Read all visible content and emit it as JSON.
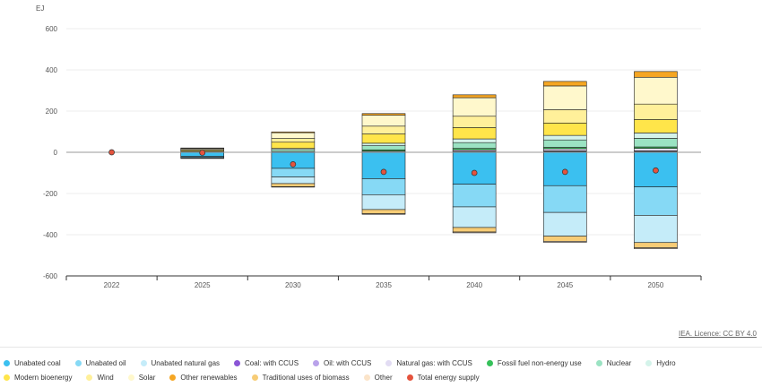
{
  "credit": "IEA. Licence: CC BY 4.0",
  "chart_data": {
    "type": "bar",
    "stacked": true,
    "ylabel": "EJ",
    "ylim": [
      -600,
      600
    ],
    "yticks": [
      600,
      400,
      200,
      0,
      -200,
      -400,
      -600
    ],
    "categories": [
      "2022",
      "2025",
      "2030",
      "2035",
      "2040",
      "2045",
      "2050"
    ],
    "series": [
      {
        "name": "Unabated coal",
        "color": "#3bc0f0",
        "values": [
          0,
          -20,
          -78,
          -128,
          -155,
          -162,
          -168
        ]
      },
      {
        "name": "Unabated oil",
        "color": "#86d9f5",
        "values": [
          0,
          -5,
          -42,
          -78,
          -110,
          -130,
          -138
        ]
      },
      {
        "name": "Unabated natural gas",
        "color": "#c5ecf9",
        "values": [
          0,
          -3,
          -32,
          -72,
          -100,
          -115,
          -132
        ]
      },
      {
        "name": "Coal: with CCUS",
        "color": "#8a55d6",
        "values": [
          0,
          0,
          0,
          1,
          3,
          4,
          4
        ]
      },
      {
        "name": "Oil: with CCUS",
        "color": "#b9a2ea",
        "values": [
          0,
          0,
          0,
          1,
          2,
          3,
          3
        ]
      },
      {
        "name": "Natural gas: with CCUS",
        "color": "#e2dcf3",
        "values": [
          0,
          0,
          1,
          4,
          7,
          10,
          12
        ]
      },
      {
        "name": "Fossil fuel non-energy use",
        "color": "#36c15a",
        "values": [
          0,
          0,
          2,
          6,
          7,
          7,
          7
        ]
      },
      {
        "name": "Nuclear",
        "color": "#9be3c3",
        "values": [
          0,
          3,
          10,
          20,
          28,
          36,
          42
        ]
      },
      {
        "name": "Hydro",
        "color": "#d4f3ea",
        "values": [
          0,
          2,
          6,
          12,
          18,
          22,
          26
        ]
      },
      {
        "name": "Modern bioenergy",
        "color": "#ffe54a",
        "values": [
          0,
          5,
          30,
          45,
          55,
          60,
          65
        ]
      },
      {
        "name": "Wind",
        "color": "#fff09a",
        "values": [
          0,
          4,
          18,
          38,
          55,
          65,
          75
        ]
      },
      {
        "name": "Solar",
        "color": "#fff8cc",
        "values": [
          0,
          6,
          28,
          53,
          90,
          115,
          130
        ]
      },
      {
        "name": "Other renewables",
        "color": "#f5a623",
        "values": [
          0,
          1,
          4,
          8,
          14,
          22,
          28
        ]
      },
      {
        "name": "Traditional uses of biomass",
        "color": "#f7cc76",
        "values": [
          0,
          0,
          -15,
          -20,
          -22,
          -25,
          -25
        ]
      },
      {
        "name": "Other",
        "color": "#fbe4c9",
        "values": [
          0,
          -2,
          -2,
          -3,
          -4,
          -5,
          -5
        ]
      }
    ],
    "total_energy_supply": {
      "name": "Total energy supply",
      "color": "#e5533d",
      "values": [
        0,
        -2,
        -58,
        -95,
        -100,
        -95,
        -88
      ]
    }
  },
  "legend": [
    {
      "label": "Unabated coal",
      "color": "#3bc0f0"
    },
    {
      "label": "Unabated oil",
      "color": "#86d9f5"
    },
    {
      "label": "Unabated natural gas",
      "color": "#c5ecf9"
    },
    {
      "label": "Coal: with CCUS",
      "color": "#8a55d6"
    },
    {
      "label": "Oil: with CCUS",
      "color": "#b9a2ea"
    },
    {
      "label": "Natural gas: with CCUS",
      "color": "#e2dcf3"
    },
    {
      "label": "Fossil fuel non-energy use",
      "color": "#36c15a"
    },
    {
      "label": "Nuclear",
      "color": "#9be3c3"
    },
    {
      "label": "Hydro",
      "color": "#d4f3ea"
    },
    {
      "label": "Modern bioenergy",
      "color": "#ffe54a"
    },
    {
      "label": "Wind",
      "color": "#fff09a"
    },
    {
      "label": "Solar",
      "color": "#fff8cc"
    },
    {
      "label": "Other renewables",
      "color": "#f5a623"
    },
    {
      "label": "Traditional uses of biomass",
      "color": "#f7cc76"
    },
    {
      "label": "Other",
      "color": "#fbe4c9"
    },
    {
      "label": "Total energy supply",
      "color": "#e5533d"
    }
  ]
}
